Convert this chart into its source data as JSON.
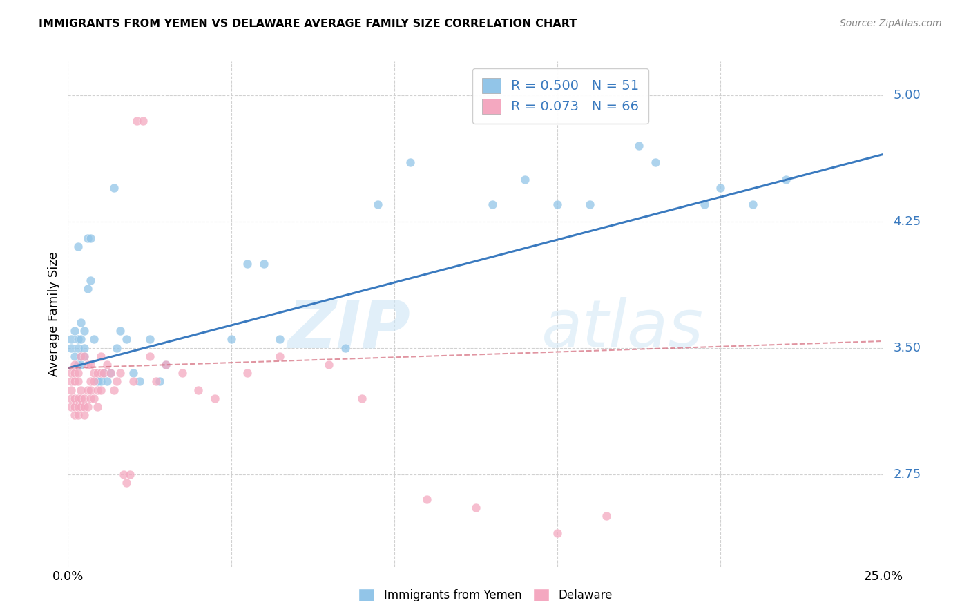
{
  "title": "IMMIGRANTS FROM YEMEN VS DELAWARE AVERAGE FAMILY SIZE CORRELATION CHART",
  "source": "Source: ZipAtlas.com",
  "ylabel": "Average Family Size",
  "yticks": [
    2.75,
    3.5,
    4.25,
    5.0
  ],
  "ytick_labels": [
    "2.75",
    "3.50",
    "4.25",
    "5.00"
  ],
  "xlim": [
    0.0,
    0.25
  ],
  "ylim": [
    2.2,
    5.2
  ],
  "blue_R": "0.500",
  "blue_N": "51",
  "pink_R": "0.073",
  "pink_N": "66",
  "blue_color": "#92c5e8",
  "pink_color": "#f4a8c0",
  "blue_line_color": "#3a7abf",
  "pink_line_color": "#d4687a",
  "tick_color": "#3a7abf",
  "grid_color": "#cccccc",
  "blue_line_x": [
    0.0,
    0.25
  ],
  "blue_line_y": [
    3.38,
    4.65
  ],
  "pink_line_x": [
    0.0,
    0.25
  ],
  "pink_line_y": [
    3.38,
    3.54
  ],
  "blue_points_x": [
    0.001,
    0.001,
    0.002,
    0.002,
    0.003,
    0.003,
    0.003,
    0.003,
    0.004,
    0.004,
    0.004,
    0.004,
    0.005,
    0.005,
    0.005,
    0.006,
    0.006,
    0.007,
    0.007,
    0.008,
    0.009,
    0.01,
    0.011,
    0.012,
    0.013,
    0.014,
    0.015,
    0.016,
    0.018,
    0.02,
    0.022,
    0.025,
    0.028,
    0.03,
    0.05,
    0.055,
    0.06,
    0.065,
    0.085,
    0.095,
    0.105,
    0.13,
    0.15,
    0.175,
    0.195,
    0.21,
    0.22,
    0.14,
    0.16,
    0.18,
    0.2
  ],
  "blue_points_y": [
    3.5,
    3.55,
    3.45,
    3.6,
    3.4,
    3.5,
    3.55,
    4.1,
    3.4,
    3.55,
    3.45,
    3.65,
    3.5,
    3.45,
    3.6,
    4.15,
    3.85,
    3.9,
    4.15,
    3.55,
    3.3,
    3.3,
    3.35,
    3.3,
    3.35,
    4.45,
    3.5,
    3.6,
    3.55,
    3.35,
    3.3,
    3.55,
    3.3,
    3.4,
    3.55,
    4.0,
    4.0,
    3.55,
    3.5,
    4.35,
    4.6,
    4.35,
    4.35,
    4.7,
    4.35,
    4.35,
    4.5,
    4.5,
    4.35,
    4.6,
    4.45
  ],
  "pink_points_x": [
    0.001,
    0.001,
    0.001,
    0.001,
    0.001,
    0.002,
    0.002,
    0.002,
    0.002,
    0.002,
    0.002,
    0.003,
    0.003,
    0.003,
    0.003,
    0.003,
    0.004,
    0.004,
    0.004,
    0.004,
    0.005,
    0.005,
    0.005,
    0.005,
    0.006,
    0.006,
    0.006,
    0.007,
    0.007,
    0.007,
    0.007,
    0.008,
    0.008,
    0.008,
    0.009,
    0.009,
    0.009,
    0.01,
    0.01,
    0.01,
    0.011,
    0.012,
    0.013,
    0.014,
    0.015,
    0.016,
    0.017,
    0.018,
    0.019,
    0.02,
    0.021,
    0.023,
    0.025,
    0.027,
    0.03,
    0.035,
    0.04,
    0.045,
    0.055,
    0.065,
    0.08,
    0.09,
    0.11,
    0.125,
    0.15,
    0.165
  ],
  "pink_points_y": [
    3.2,
    3.25,
    3.3,
    3.35,
    3.15,
    3.1,
    3.15,
    3.2,
    3.3,
    3.35,
    3.4,
    3.1,
    3.15,
    3.2,
    3.3,
    3.35,
    3.15,
    3.2,
    3.25,
    3.45,
    3.1,
    3.15,
    3.2,
    3.45,
    3.15,
    3.25,
    3.4,
    3.2,
    3.25,
    3.3,
    3.4,
    3.2,
    3.3,
    3.35,
    3.15,
    3.25,
    3.35,
    3.25,
    3.35,
    3.45,
    3.35,
    3.4,
    3.35,
    3.25,
    3.3,
    3.35,
    2.75,
    2.7,
    2.75,
    3.3,
    4.85,
    4.85,
    3.45,
    3.3,
    3.4,
    3.35,
    3.25,
    3.2,
    3.35,
    3.45,
    3.4,
    3.2,
    2.6,
    2.55,
    2.4,
    2.5
  ]
}
